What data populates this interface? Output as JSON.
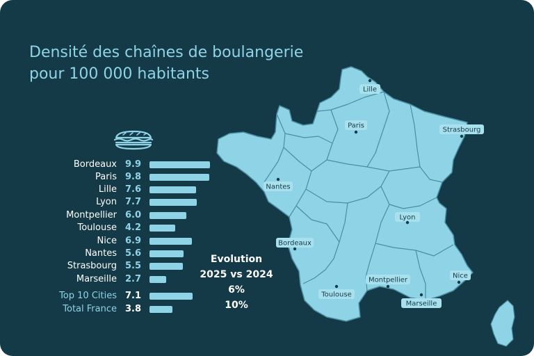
{
  "title": {
    "line1": "Densité des chaînes de boulangerie",
    "line2": "pour 100 000 habitants"
  },
  "colors": {
    "background": "#143a48",
    "accent": "#8fd3e6",
    "map_fill": "#8fd3e6",
    "map_border": "#4a8ea2",
    "text": "#ffffff"
  },
  "icons": {
    "header": "sandwich-bread-icon"
  },
  "chart_data": {
    "type": "bar",
    "orientation": "horizontal",
    "categories": [
      "Bordeaux",
      "Paris",
      "Lille",
      "Lyon",
      "Montpellier",
      "Toulouse",
      "Nice",
      "Nantes",
      "Strasbourg",
      "Marseille",
      "Top 10 Cities",
      "Total France"
    ],
    "values": [
      9.9,
      9.8,
      7.6,
      7.7,
      6.0,
      4.2,
      6.9,
      5.6,
      5.5,
      2.7,
      7.1,
      3.8
    ],
    "value_labels": [
      "9.9",
      "9.8",
      "7.6",
      "7.7",
      "6.0",
      "4.2",
      "6.9",
      "5.6",
      "5.5",
      "2.7",
      "7.1",
      "3.8"
    ],
    "summary_categories": [
      "Top 10 Cities",
      "Total France"
    ],
    "title": "Densité des chaînes de boulangerie pour 100 000 habitants",
    "xlim": [
      0,
      10
    ],
    "grid": false,
    "legend": "none"
  },
  "evolution": {
    "label": "Evolution",
    "period": "2025 vs 2024",
    "values": [
      "6%",
      "10%"
    ]
  },
  "map": {
    "cities": [
      "Lille",
      "Paris",
      "Strasbourg",
      "Nantes",
      "Lyon",
      "Bordeaux",
      "Nice",
      "Montpellier",
      "Toulouse",
      "Marseille"
    ]
  }
}
